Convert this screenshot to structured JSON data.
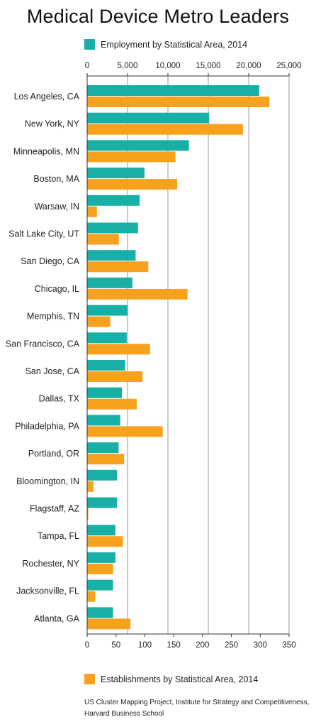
{
  "chart_data": {
    "type": "bar",
    "title": "Medical Device Metro Leaders",
    "categories": [
      "Los Angeles, CA",
      "New York, NY",
      "Minneapolis, MN",
      "Boston, MA",
      "Warsaw, IN",
      "Salt Lake City, UT",
      "San Diego, CA",
      "Chicago, IL",
      "Memphis, TN",
      "San Francisco, CA",
      "San Jose, CA",
      "Dallas, TX",
      "Philadelphia, PA",
      "Portland, OR",
      "Bloomington, IN",
      "Flagstaff, AZ",
      "Tampa, FL",
      "Rochester, NY",
      "Jacksonville, FL",
      "Atlanta, GA"
    ],
    "series": [
      {
        "name": "Employment by Statistical Area, 2014",
        "axis": "top",
        "color": "#18b0a6",
        "values": [
          21300,
          15100,
          12600,
          7100,
          6500,
          6300,
          6000,
          5600,
          5000,
          4900,
          4700,
          4300,
          4100,
          3900,
          3700,
          3700,
          3500,
          3500,
          3200,
          3200
        ]
      },
      {
        "name": "Establishments by Statistical Area, 2014",
        "axis": "bottom",
        "color": "#f7a21f",
        "values": [
          316,
          270,
          153,
          156,
          17,
          55,
          106,
          174,
          40,
          109,
          96,
          86,
          131,
          64,
          11,
          2,
          62,
          45,
          14,
          75
        ]
      }
    ],
    "top_axis": {
      "min": 0,
      "max": 25000,
      "ticks": [
        "0",
        "5,000",
        "10,000",
        "15,000",
        "20,000",
        "25,000"
      ]
    },
    "bottom_axis": {
      "min": 0,
      "max": 350,
      "ticks": [
        "0",
        "50",
        "100",
        "150",
        "200",
        "250",
        "300",
        "350"
      ]
    },
    "grid": true
  },
  "source": [
    "US Cluster Mapping Project, Institute for Strategy and Competitiveness,",
    "Harvard Business School"
  ]
}
